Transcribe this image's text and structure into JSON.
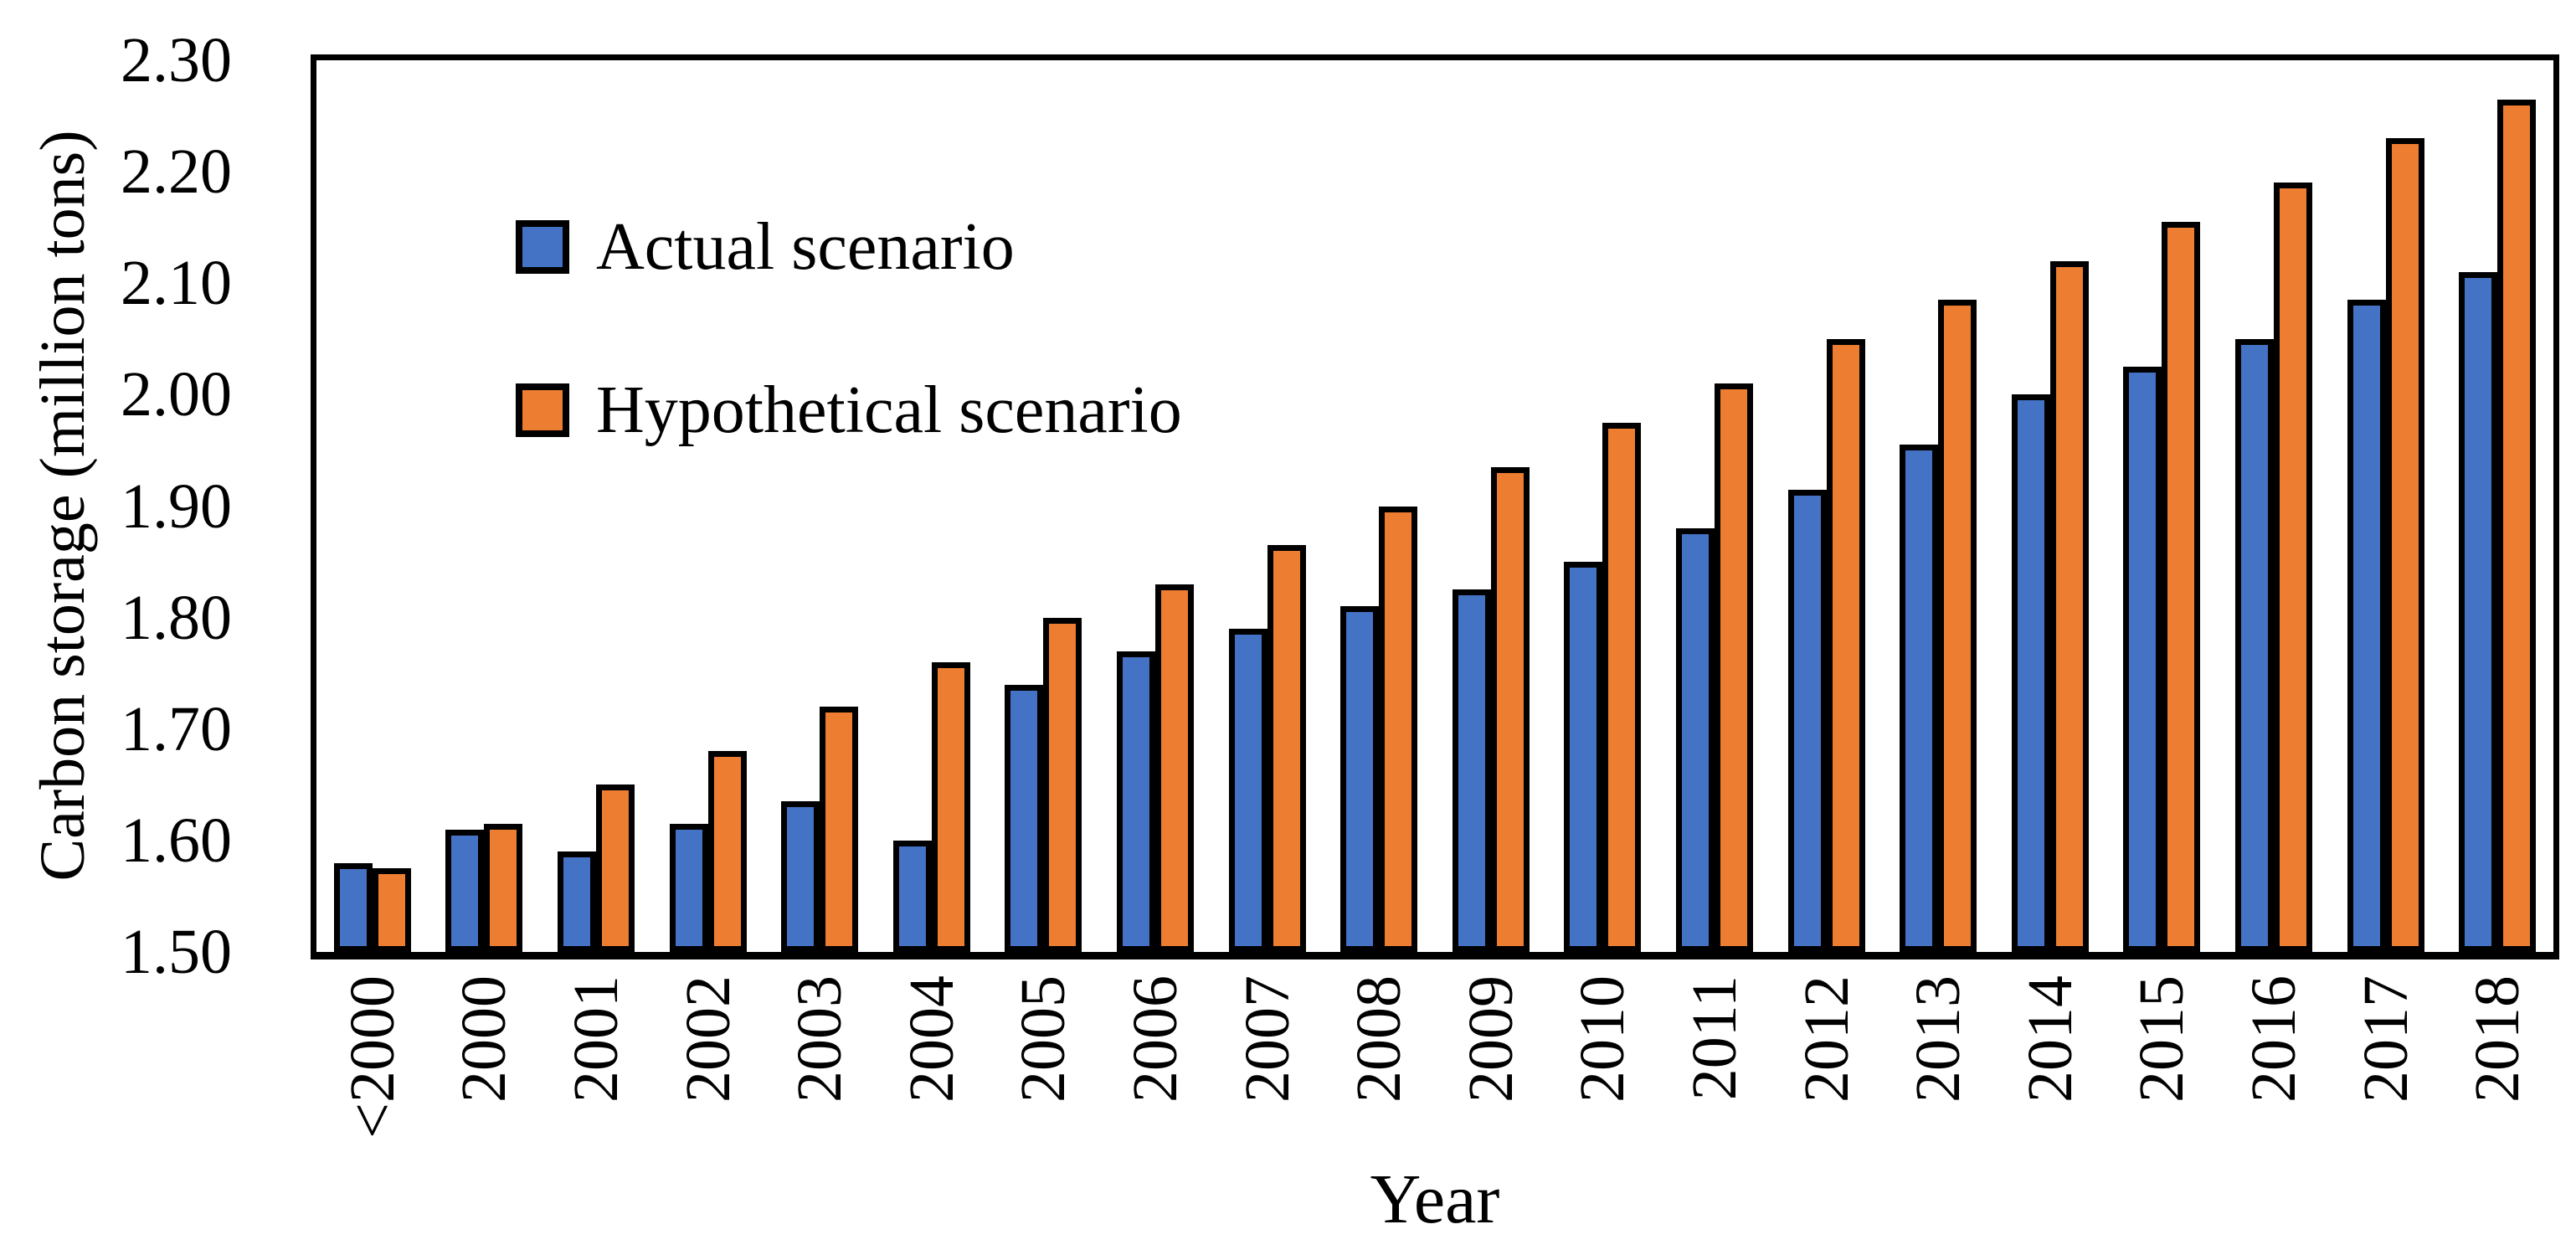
{
  "figure": {
    "background": "#ffffff",
    "frame_color": "#000000",
    "bar_outline": "#000000"
  },
  "chart_data": {
    "type": "bar",
    "title": "",
    "xlabel": "Year",
    "ylabel": "Carbon storage (million tons)",
    "ylim": [
      1.5,
      2.3
    ],
    "ytick_step": 0.1,
    "ytick_labels": [
      "1.50",
      "1.60",
      "1.70",
      "1.80",
      "1.90",
      "2.00",
      "2.10",
      "2.20",
      "2.30"
    ],
    "grid": false,
    "legend_position": "inside-top-left",
    "categories": [
      "<2000",
      "2000",
      "2001",
      "2002",
      "2003",
      "2004",
      "2005",
      "2006",
      "2007",
      "2008",
      "2009",
      "2010",
      "2011",
      "2012",
      "2013",
      "2014",
      "2015",
      "2016",
      "2017",
      "2018"
    ],
    "series": [
      {
        "name": "Actual scenario",
        "color": "#4472C4",
        "values": [
          1.58,
          1.61,
          1.59,
          1.615,
          1.635,
          1.6,
          1.74,
          1.77,
          1.79,
          1.81,
          1.825,
          1.85,
          1.88,
          1.915,
          1.955,
          2.0,
          2.025,
          2.05,
          2.085,
          2.11
        ]
      },
      {
        "name": "Hypothetical scenario",
        "color": "#ED7D31",
        "values": [
          1.575,
          1.615,
          1.65,
          1.68,
          1.72,
          1.76,
          1.8,
          1.83,
          1.865,
          1.9,
          1.935,
          1.975,
          2.01,
          2.05,
          2.085,
          2.12,
          2.155,
          2.19,
          2.23,
          2.265
        ]
      }
    ]
  }
}
